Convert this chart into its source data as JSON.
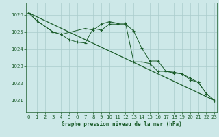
{
  "xlabel": "Graphe pression niveau de la mer (hPa)",
  "bg_color": "#cde8e8",
  "grid_color": "#aacccc",
  "line_color": "#1a5c2a",
  "x_ticks": [
    0,
    1,
    2,
    3,
    4,
    5,
    6,
    7,
    8,
    9,
    10,
    11,
    12,
    13,
    14,
    15,
    16,
    17,
    18,
    19,
    20,
    21,
    22,
    23
  ],
  "y_ticks": [
    1021,
    1022,
    1023,
    1024,
    1025,
    1026
  ],
  "ylim": [
    1020.3,
    1026.7
  ],
  "xlim": [
    -0.3,
    23.3
  ],
  "line1_x": [
    0,
    1,
    3,
    4,
    5,
    6,
    7,
    8,
    9,
    10,
    11,
    12,
    13,
    14,
    15,
    16,
    17,
    18,
    19,
    20,
    21,
    22,
    23
  ],
  "line1_y": [
    1026.1,
    1025.65,
    1025.0,
    1024.85,
    1024.55,
    1024.4,
    1024.35,
    1025.2,
    1025.1,
    1025.45,
    1025.45,
    1025.45,
    1025.05,
    1024.05,
    1023.3,
    1023.3,
    1022.7,
    1022.65,
    1022.55,
    1022.2,
    1022.05,
    1021.4,
    1021.0
  ],
  "line2_x": [
    0,
    1,
    3,
    4,
    7,
    8,
    9,
    10,
    11,
    12,
    13,
    14,
    15,
    16,
    17,
    18,
    19,
    20,
    21,
    22,
    23
  ],
  "line2_y": [
    1026.1,
    1025.65,
    1025.0,
    1024.85,
    1025.2,
    1025.1,
    1025.45,
    1025.6,
    1025.5,
    1025.5,
    1023.25,
    1023.25,
    1023.15,
    1022.7,
    1022.7,
    1022.6,
    1022.55,
    1022.3,
    1022.05,
    1021.4,
    1021.0
  ],
  "line3_x": [
    0,
    23
  ],
  "line3_y": [
    1026.1,
    1021.0
  ]
}
